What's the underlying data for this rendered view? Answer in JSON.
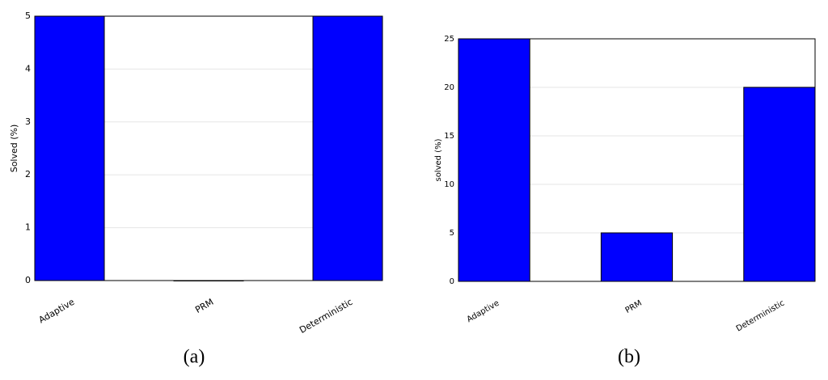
{
  "chart_data": [
    {
      "type": "bar",
      "caption": "(a)",
      "ylabel": "Solved (%)",
      "categories": [
        "Adaptive",
        "PRM",
        "Deterministic"
      ],
      "values": [
        5,
        0,
        5
      ],
      "color": "#0000ff",
      "ylim": [
        0,
        5
      ],
      "yticks": [
        0,
        1,
        2,
        3,
        4,
        5
      ],
      "grid": true
    },
    {
      "type": "bar",
      "caption": "(b)",
      "ylabel": "solved (%)",
      "categories": [
        "Adaptive",
        "PRM",
        "Deterministic"
      ],
      "values": [
        25,
        5,
        20
      ],
      "color": "#0000ff",
      "ylim": [
        0,
        25
      ],
      "yticks": [
        0,
        5,
        10,
        15,
        20,
        25
      ],
      "grid": true
    }
  ]
}
